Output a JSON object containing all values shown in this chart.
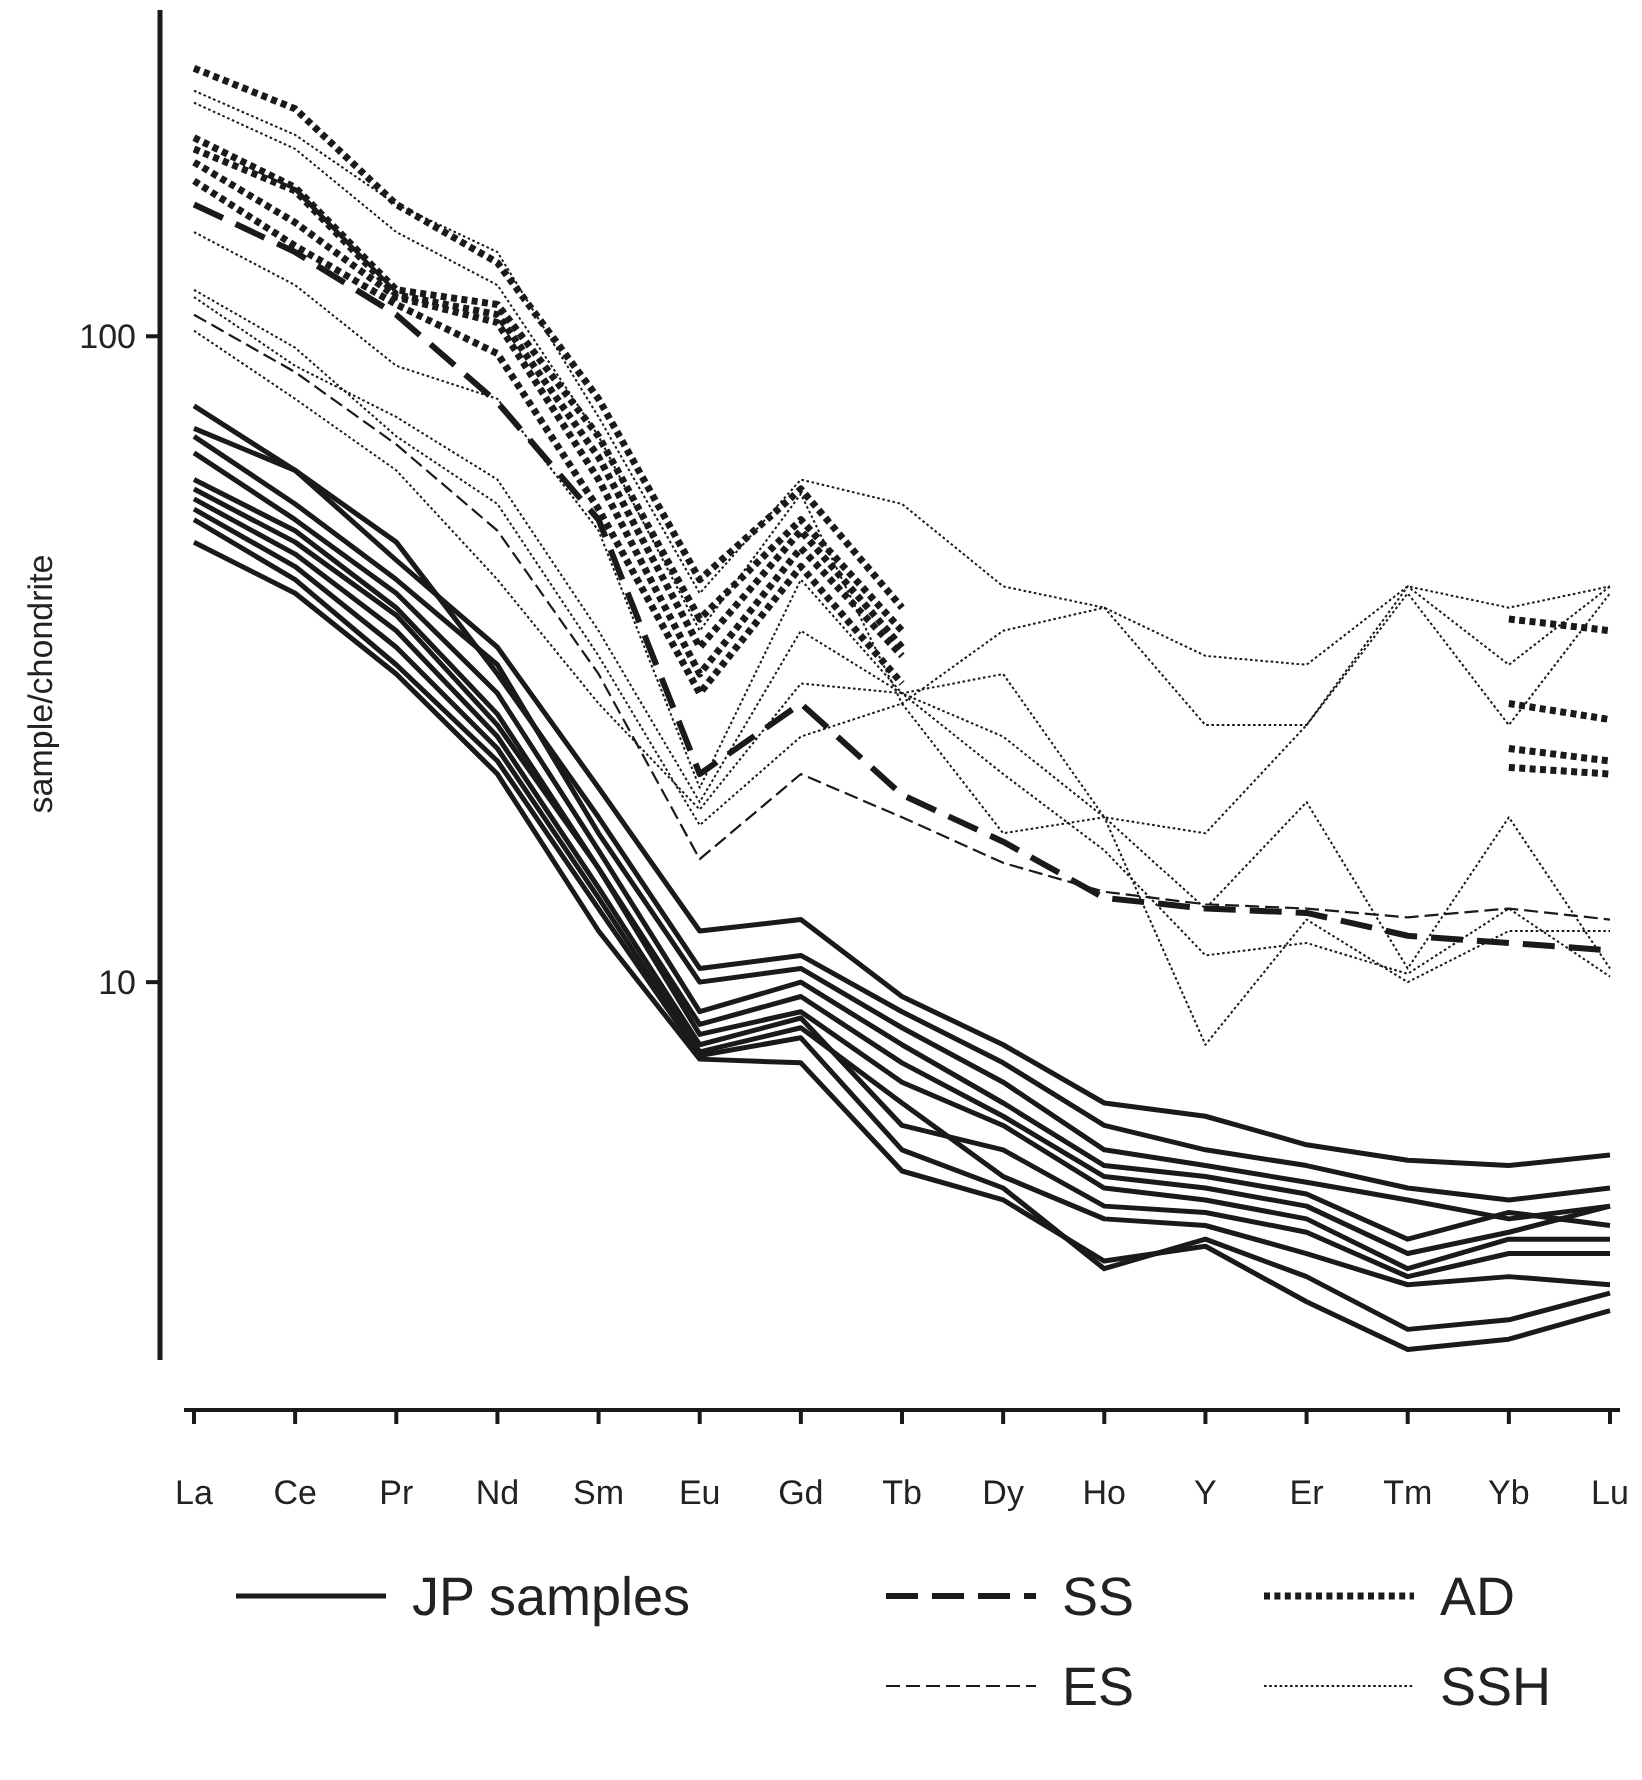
{
  "chart_data": {
    "type": "line",
    "ylabel": "sample/chondrite",
    "log": "y",
    "ylim": [
      2.6,
      320
    ],
    "yticks": [
      10,
      100
    ],
    "legend": "bottom",
    "grid": false,
    "categories": [
      "La",
      "Ce",
      "Pr",
      "Nd",
      "Sm",
      "Eu",
      "Gd",
      "Tb",
      "Dy",
      "Ho",
      "Y",
      "Er",
      "Tm",
      "Yb",
      "Lu"
    ],
    "series": [
      {
        "name": "JP samples",
        "color": "#1a1a1a",
        "line_style": "solid",
        "values": [
          78,
          62,
          45,
          33,
          20,
          12,
          12.5,
          9.5,
          8,
          6.5,
          6.2,
          5.6,
          5.3,
          5.2,
          5.4
        ]
      },
      {
        "color": "#1a1a1a",
        "line_style": "solid",
        "values": [
          72,
          62,
          48,
          30,
          18,
          10.5,
          11,
          9,
          7.5,
          6,
          5.5,
          5.2,
          4.8,
          4.6,
          4.8
        ]
      },
      {
        "color": "#1a1a1a",
        "line_style": "solid",
        "values": [
          70,
          55,
          42,
          31,
          17,
          10,
          10.5,
          8.5,
          7,
          5.5,
          5.2,
          4.9,
          4.6,
          4.3,
          4.5
        ]
      },
      {
        "color": "#1a1a1a",
        "line_style": "solid",
        "values": [
          66,
          52,
          40,
          28,
          16,
          9,
          10,
          8,
          6.5,
          5.2,
          5,
          4.7,
          4,
          4.4,
          4.2
        ]
      },
      {
        "color": "#1a1a1a",
        "line_style": "solid",
        "values": [
          60,
          50,
          38,
          26,
          15,
          8.6,
          9.5,
          7.5,
          6.2,
          5,
          4.8,
          4.5,
          3.8,
          4.1,
          4.5
        ]
      },
      {
        "color": "#1a1a1a",
        "line_style": "solid",
        "values": [
          58,
          48,
          37,
          25,
          15,
          8.3,
          9,
          7,
          6,
          4.8,
          4.6,
          4.3,
          3.6,
          4,
          4
        ]
      },
      {
        "color": "#1a1a1a",
        "line_style": "solid",
        "values": [
          56,
          46,
          35,
          24,
          14,
          8,
          8.8,
          6,
          5.5,
          4.5,
          4.4,
          4.1,
          3.5,
          3.8,
          3.8
        ]
      },
      {
        "color": "#1a1a1a",
        "line_style": "solid",
        "values": [
          54,
          44,
          33,
          23,
          13.5,
          7.8,
          8.5,
          6.5,
          5,
          4.3,
          4.2,
          3.8,
          3.4,
          3.5,
          3.4
        ]
      },
      {
        "color": "#1a1a1a",
        "line_style": "solid",
        "values": [
          52,
          42,
          31,
          22,
          13,
          7.7,
          8.2,
          5.5,
          4.8,
          3.6,
          4,
          3.5,
          2.9,
          3,
          3.3
        ]
      },
      {
        "color": "#1a1a1a",
        "line_style": "solid",
        "values": [
          48,
          40,
          30,
          21,
          12,
          7.6,
          7.5,
          5.1,
          4.6,
          3.7,
          3.9,
          3.2,
          2.7,
          2.8,
          3.1
        ]
      },
      {
        "name": "SS",
        "color": "#1a1a1a",
        "line_style": "dashed",
        "values": [
          160,
          135,
          108,
          79,
          52,
          21,
          27,
          19.5,
          16.5,
          13.5,
          13,
          12.8,
          11.8,
          11.5,
          11.2
        ]
      },
      {
        "name": "ES",
        "color": "#1a1a1a",
        "line_style": "dashed",
        "values": [
          108,
          88,
          68,
          50,
          30,
          15.5,
          21,
          18,
          15.3,
          13.8,
          13.2,
          13,
          12.6,
          13,
          12.5
        ]
      },
      {
        "name": "AD",
        "color": "#1a1a1a",
        "line_style": "dotted",
        "values": [
          260,
          225,
          160,
          130,
          80,
          42,
          58,
          38,
          null,
          null,
          null,
          null,
          null,
          36.5,
          35
        ]
      },
      {
        "color": "#1a1a1a",
        "line_style": "dotted",
        "values": [
          203,
          170,
          118,
          112,
          70,
          36.5,
          52,
          35,
          null,
          null,
          null,
          null,
          null,
          27,
          25.5
        ]
      },
      {
        "color": "#1a1a1a",
        "line_style": "dotted",
        "values": [
          195,
          168,
          116,
          108,
          65,
          33,
          50,
          33,
          null,
          null,
          null,
          null,
          null,
          23,
          22
        ]
      },
      {
        "color": "#1a1a1a",
        "line_style": "dotted",
        "values": [
          186,
          150,
          115,
          105,
          60,
          30,
          47,
          32,
          null,
          null,
          null,
          null,
          null,
          21.5,
          21
        ]
      },
      {
        "color": "#1a1a1a",
        "line_style": "dotted",
        "values": [
          174,
          138,
          112,
          94,
          54,
          28,
          44,
          29,
          null,
          null,
          null,
          null,
          null,
          null,
          null
        ]
      },
      {
        "name": "SSH",
        "color": "#1a1a1a",
        "line_style": "dotted",
        "values": [
          240,
          205,
          160,
          135,
          75,
          40,
          60,
          55,
          41,
          38,
          32,
          31,
          41,
          38,
          41
        ]
      },
      {
        "color": "#1a1a1a",
        "line_style": "dotted",
        "values": [
          230,
          195,
          145,
          120,
          70,
          35,
          57,
          27,
          35,
          38,
          25,
          25,
          41,
          31,
          41
        ]
      },
      {
        "color": "#1a1a1a",
        "line_style": "dotted",
        "values": [
          145,
          120,
          90,
          80,
          50,
          20,
          42,
          28,
          30,
          18,
          17,
          25,
          40,
          25,
          40
        ]
      },
      {
        "color": "#1a1a1a",
        "line_style": "dotted",
        "values": [
          115,
          90,
          75,
          60,
          35,
          19,
          35,
          28,
          24,
          18,
          13,
          19,
          10.5,
          18,
          10.5
        ]
      },
      {
        "color": "#1a1a1a",
        "line_style": "dotted",
        "values": [
          118,
          96,
          70,
          55,
          32,
          17.5,
          24,
          27,
          17,
          18,
          8,
          12.5,
          10,
          12,
          12
        ]
      },
      {
        "color": "#1a1a1a",
        "line_style": "dotted",
        "values": [
          102,
          80,
          62,
          42,
          27,
          18.5,
          29,
          28,
          21,
          16,
          11,
          11.5,
          10.3,
          13,
          10.2
        ]
      }
    ]
  }
}
